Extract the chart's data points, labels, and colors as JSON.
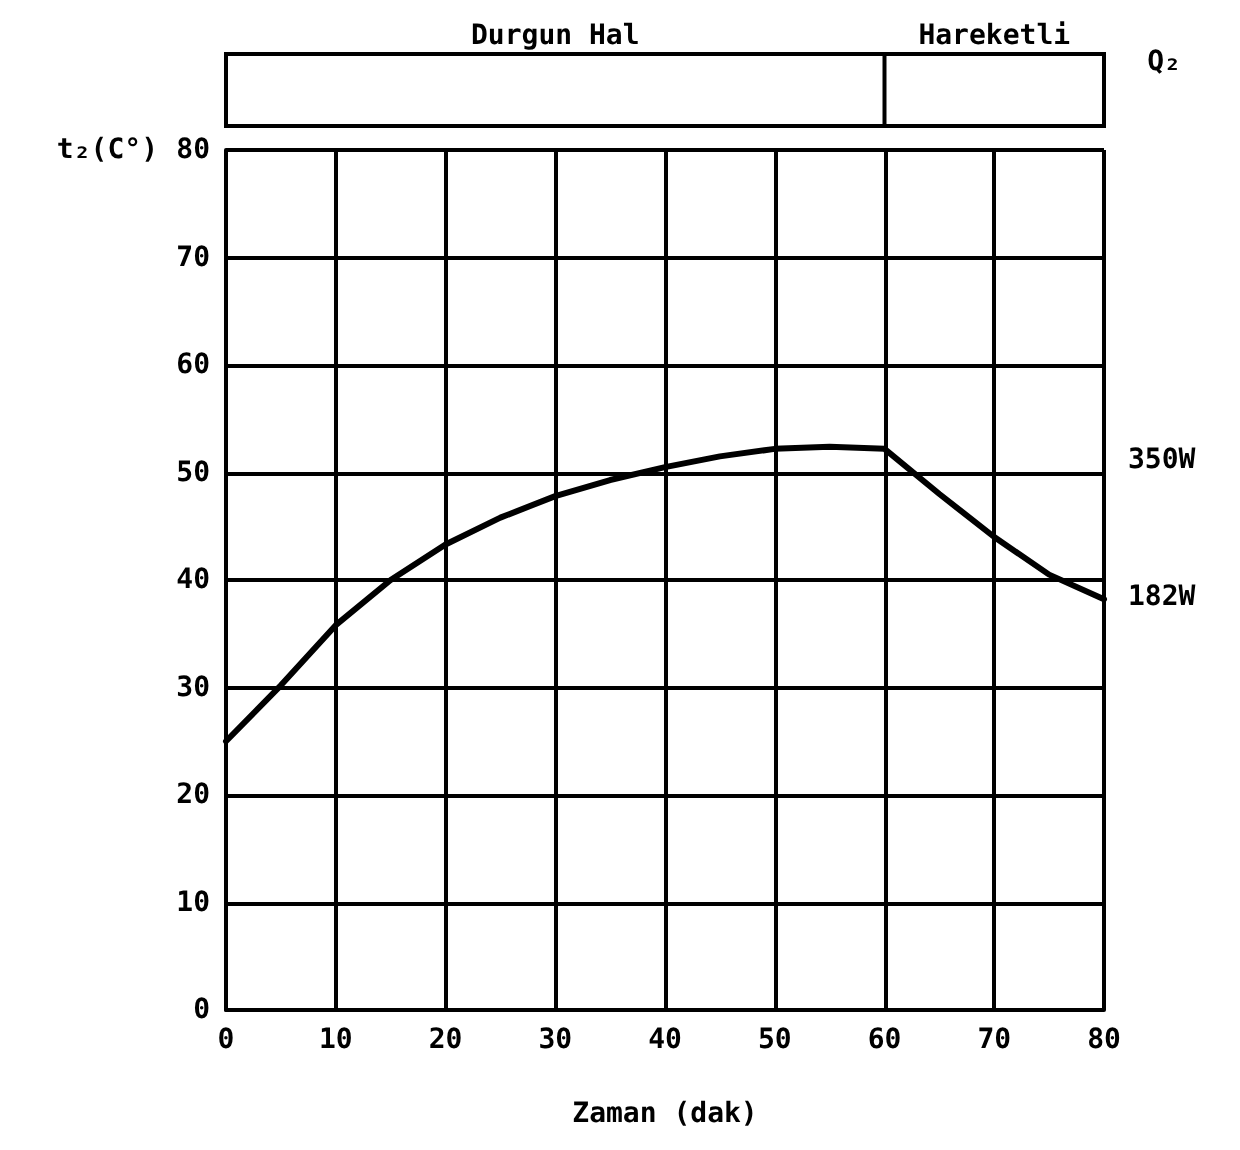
{
  "chart_data": {
    "type": "line",
    "xlabel": "Zaman (dak)",
    "ylabel": "t₂(C°)",
    "x": [
      0,
      5,
      10,
      15,
      20,
      25,
      30,
      35,
      40,
      45,
      50,
      55,
      60,
      65,
      70,
      75,
      80
    ],
    "series": [
      {
        "color": "#000000",
        "values": [
          25,
          30.2,
          35.8,
          40,
          43.3,
          45.8,
          47.8,
          49.3,
          50.5,
          51.5,
          52.2,
          52.4,
          52.2,
          48,
          44,
          40.5,
          38.2
        ]
      }
    ],
    "xlim": [
      0,
      80
    ],
    "xticks": [
      0,
      10,
      20,
      30,
      40,
      50,
      60,
      70,
      80
    ],
    "ylim": [
      0,
      80
    ],
    "yticks": [
      0,
      10,
      20,
      30,
      40,
      50,
      60,
      70,
      80
    ],
    "grid": true,
    "marker": "none",
    "line_style": "solid",
    "annotations": [
      "Durgun Hal",
      "Hareketli",
      "Q₂",
      "350W",
      "182W"
    ]
  }
}
